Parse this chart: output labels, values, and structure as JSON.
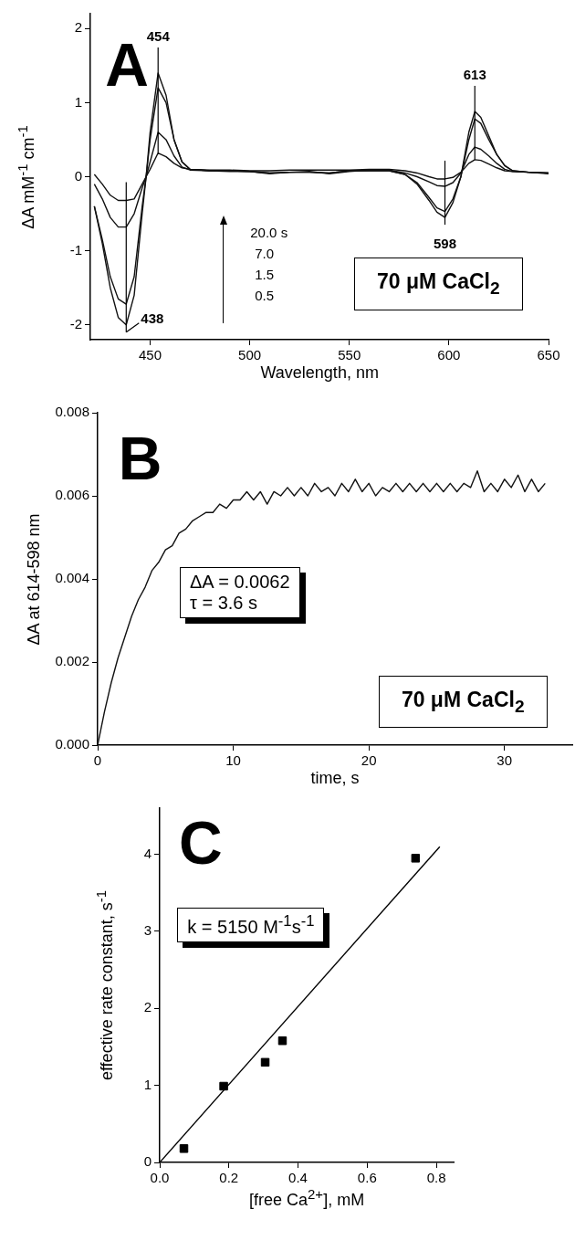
{
  "chart_data": [
    {
      "type": "line",
      "xlabel": "Wavelength, nm",
      "ylabel": "ΔA mM$^{-1}$ cm$^{-1}$",
      "marker": "none",
      "line_style": "solid",
      "xlim": [
        420,
        650
      ],
      "ylim": [
        -2.2,
        2.2
      ],
      "xticks": [
        450,
        500,
        550,
        600,
        650
      ],
      "yticks": [
        -2,
        -1,
        0,
        1,
        2
      ],
      "x": [
        422,
        426,
        430,
        434,
        438,
        442,
        446,
        448,
        450,
        454,
        458,
        462,
        466,
        470,
        480,
        490,
        500,
        510,
        520,
        530,
        540,
        550,
        560,
        570,
        578,
        584,
        590,
        594,
        598,
        602,
        606,
        610,
        613,
        616,
        620,
        624,
        628,
        632,
        640,
        650
      ],
      "series": [
        {
          "color": "#111111",
          "values": [
            -0.4,
            -0.9,
            -1.5,
            -1.9,
            -2.0,
            -1.6,
            -0.5,
            0.0,
            0.6,
            1.4,
            1.1,
            0.5,
            0.2,
            0.1,
            0.08,
            0.08,
            0.07,
            0.05,
            0.06,
            0.06,
            0.05,
            0.08,
            0.08,
            0.08,
            0.03,
            -0.1,
            -0.32,
            -0.48,
            -0.55,
            -0.35,
            0.0,
            0.6,
            0.88,
            0.8,
            0.55,
            0.3,
            0.15,
            0.08,
            0.06,
            0.05
          ]
        },
        {
          "color": "#111111",
          "values": [
            -0.4,
            -0.85,
            -1.35,
            -1.65,
            -1.72,
            -1.35,
            -0.4,
            0.0,
            0.5,
            1.2,
            1.0,
            0.5,
            0.2,
            0.1,
            0.08,
            0.08,
            0.07,
            0.05,
            0.06,
            0.06,
            0.05,
            0.08,
            0.08,
            0.08,
            0.03,
            -0.08,
            -0.28,
            -0.42,
            -0.47,
            -0.3,
            0.0,
            0.5,
            0.78,
            0.72,
            0.5,
            0.3,
            0.15,
            0.08,
            0.06,
            0.05
          ]
        },
        {
          "color": "#111111",
          "values": [
            -0.1,
            -0.3,
            -0.55,
            -0.68,
            -0.68,
            -0.5,
            -0.15,
            0.0,
            0.2,
            0.6,
            0.5,
            0.28,
            0.13,
            0.09,
            0.08,
            0.07,
            0.07,
            0.04,
            0.06,
            0.07,
            0.04,
            0.07,
            0.09,
            0.09,
            0.05,
            0.0,
            -0.07,
            -0.12,
            -0.13,
            -0.08,
            0.05,
            0.3,
            0.4,
            0.37,
            0.28,
            0.18,
            0.1,
            0.07,
            0.06,
            0.04
          ]
        },
        {
          "color": "#111111",
          "values": [
            0.03,
            -0.1,
            -0.25,
            -0.32,
            -0.32,
            -0.3,
            -0.1,
            0.0,
            0.1,
            0.32,
            0.27,
            0.18,
            0.12,
            0.1,
            0.09,
            0.09,
            0.08,
            0.08,
            0.09,
            0.09,
            0.09,
            0.09,
            0.1,
            0.1,
            0.08,
            0.05,
            0.0,
            -0.03,
            -0.03,
            -0.01,
            0.06,
            0.18,
            0.23,
            0.22,
            0.17,
            0.12,
            0.08,
            0.07,
            0.06,
            0.05
          ]
        }
      ],
      "ref_lines": [
        {
          "axis": "x",
          "value": 454,
          "label": "454"
        },
        {
          "axis": "x",
          "value": 438,
          "label": "438"
        },
        {
          "axis": "x",
          "value": 598,
          "label": "598"
        },
        {
          "axis": "x",
          "value": 613,
          "label": "613"
        }
      ],
      "annotations": [
        "A",
        "20.0 s",
        "7.0",
        "1.5",
        "0.5",
        "70 μM CaCl$_{2}$"
      ]
    },
    {
      "type": "line",
      "xlabel": "time, s",
      "ylabel": "ΔA at 614-598 nm",
      "marker": "none",
      "line_style": "solid",
      "xlim": [
        0,
        35
      ],
      "ylim": [
        0,
        0.008
      ],
      "xticks": [
        0,
        10,
        20,
        30
      ],
      "yticks": [
        {
          "value": 0,
          "label": "0.000"
        },
        {
          "value": 0.002,
          "label": "0.002"
        },
        {
          "value": 0.004,
          "label": "0.004"
        },
        {
          "value": 0.006,
          "label": "0.006"
        },
        {
          "value": 0.008,
          "label": "0.008"
        }
      ],
      "x": [
        0,
        0.5,
        1,
        1.5,
        2,
        2.5,
        3,
        3.5,
        4,
        4.5,
        5,
        5.5,
        6,
        6.5,
        7,
        7.5,
        8,
        8.5,
        9,
        9.5,
        10,
        10.5,
        11,
        11.5,
        12,
        12.5,
        13,
        13.5,
        14,
        14.5,
        15,
        15.5,
        16,
        16.5,
        17,
        17.5,
        18,
        18.5,
        19,
        19.5,
        20,
        20.5,
        21,
        21.5,
        22,
        22.5,
        23,
        23.5,
        24,
        24.5,
        25,
        25.5,
        26,
        26.5,
        27,
        27.5,
        28,
        28.5,
        29,
        29.5,
        30,
        30.5,
        31,
        31.5,
        32,
        32.5,
        33
      ],
      "series": [
        {
          "color": "#111111",
          "values": [
            0.0,
            0.0008,
            0.0015,
            0.0021,
            0.0026,
            0.0031,
            0.0035,
            0.0038,
            0.0042,
            0.0044,
            0.0047,
            0.0048,
            0.0051,
            0.0052,
            0.0054,
            0.0055,
            0.0056,
            0.0056,
            0.0058,
            0.0057,
            0.0059,
            0.0059,
            0.0061,
            0.0059,
            0.0061,
            0.0058,
            0.0061,
            0.006,
            0.0062,
            0.006,
            0.0062,
            0.006,
            0.0063,
            0.0061,
            0.0062,
            0.006,
            0.0063,
            0.0061,
            0.0064,
            0.0061,
            0.0063,
            0.006,
            0.0062,
            0.0061,
            0.0063,
            0.0061,
            0.0063,
            0.0061,
            0.0063,
            0.0061,
            0.0063,
            0.0061,
            0.0063,
            0.0061,
            0.0063,
            0.0062,
            0.0066,
            0.0061,
            0.0063,
            0.0061,
            0.0064,
            0.0062,
            0.0065,
            0.0061,
            0.0064,
            0.0061,
            0.0063
          ]
        }
      ],
      "annotations": [
        "B",
        "ΔA = 0.0062",
        "τ  = 3.6 s",
        "70 μM CaCl$_{2}$"
      ]
    },
    {
      "type": "scatter",
      "xlabel": "[free Ca$^{2+}$], mM",
      "ylabel": "effective rate constant, s$^{-1}$",
      "marker": "square",
      "xlim": [
        0,
        0.85
      ],
      "ylim": [
        0,
        4.6
      ],
      "xticks": [
        {
          "value": 0,
          "label": "0.0"
        },
        {
          "value": 0.2,
          "label": "0.2"
        },
        {
          "value": 0.4,
          "label": "0.4"
        },
        {
          "value": 0.6,
          "label": "0.6"
        },
        {
          "value": 0.8,
          "label": "0.8"
        }
      ],
      "yticks": [
        0,
        1,
        2,
        3,
        4
      ],
      "series": [
        {
          "color": "#000000",
          "x": [
            0.07,
            0.185,
            0.305,
            0.355,
            0.74
          ],
          "values": [
            0.18,
            0.99,
            1.3,
            1.58,
            3.95
          ]
        },
        {
          "type": "line",
          "marker": "none",
          "color": "#000000",
          "x": [
            0,
            0.81
          ],
          "values": [
            0,
            4.1
          ]
        }
      ],
      "annotations": [
        "C",
        "k = 5150 M$^{-1}$s$^{-1}$"
      ]
    }
  ]
}
